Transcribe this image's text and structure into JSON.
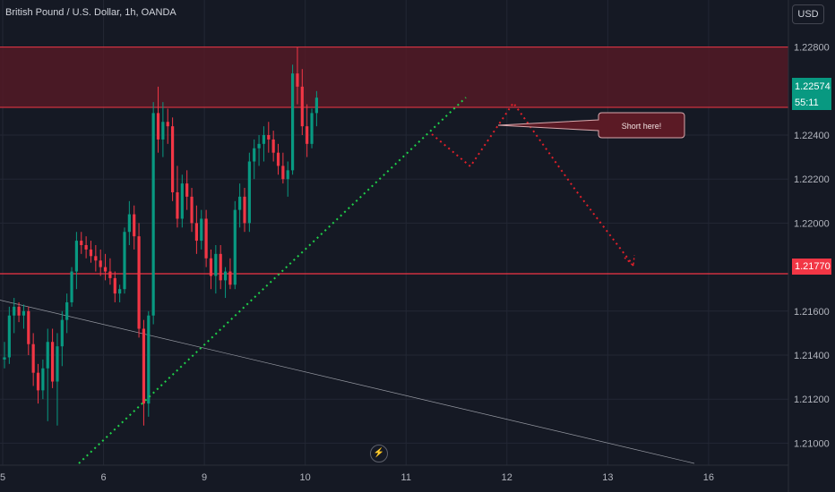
{
  "header": {
    "title": "British Pound / U.S. Dollar, 1h, OANDA",
    "currency": "USD"
  },
  "price_tags": {
    "current_price": "1.22574",
    "countdown": "55:11",
    "line_price": "1.21770"
  },
  "annotation": {
    "callout_text": "Short here!"
  },
  "colors": {
    "background": "#151924",
    "up": "#089981",
    "down": "#f23645",
    "trendline": "#1fd14a",
    "zone": "#5b1a25",
    "projection": "#e0202a"
  },
  "chart_data": {
    "type": "candlestick",
    "symbol": "GBPUSD",
    "timeframe": "1h",
    "ylim": [
      1.209,
      1.229
    ],
    "yticks": [
      1.21,
      1.212,
      1.214,
      1.216,
      1.22,
      1.222,
      1.224,
      1.228
    ],
    "ytick_labels": [
      "1.21000",
      "1.21200",
      "1.21400",
      "1.21600",
      "1.22000",
      "1.22200",
      "1.22400",
      "1.22800"
    ],
    "xticks": [
      {
        "label": "5",
        "index": 0
      },
      {
        "label": "6",
        "index": 21
      },
      {
        "label": "9",
        "index": 42
      },
      {
        "label": "10",
        "index": 63
      },
      {
        "label": "11",
        "index": 84
      },
      {
        "label": "12",
        "index": 105
      },
      {
        "label": "13",
        "index": 126
      },
      {
        "label": "16",
        "index": 147
      }
    ],
    "candles": [
      [
        1.2138,
        1.2146,
        1.2134,
        1.2139
      ],
      [
        1.2139,
        1.2162,
        1.2136,
        1.2158
      ],
      [
        1.2158,
        1.2166,
        1.215,
        1.2162
      ],
      [
        1.2162,
        1.2164,
        1.2155,
        1.2158
      ],
      [
        1.2158,
        1.2163,
        1.2152,
        1.216
      ],
      [
        1.216,
        1.2162,
        1.214,
        1.2145
      ],
      [
        1.2145,
        1.215,
        1.2126,
        1.2132
      ],
      [
        1.2132,
        1.2136,
        1.2118,
        1.2124
      ],
      [
        1.2124,
        1.2138,
        1.212,
        1.2134
      ],
      [
        1.2134,
        1.2152,
        1.211,
        1.2146
      ],
      [
        1.2146,
        1.2152,
        1.2125,
        1.2128
      ],
      [
        1.2128,
        1.215,
        1.2108,
        1.2144
      ],
      [
        1.2144,
        1.216,
        1.2135,
        1.2156
      ],
      [
        1.2156,
        1.2168,
        1.215,
        1.2164
      ],
      [
        1.2164,
        1.218,
        1.2162,
        1.2178
      ],
      [
        1.2178,
        1.2196,
        1.217,
        1.2192
      ],
      [
        1.2192,
        1.2196,
        1.2186,
        1.219
      ],
      [
        1.219,
        1.2194,
        1.2184,
        1.2188
      ],
      [
        1.2188,
        1.2192,
        1.2182,
        1.2185
      ],
      [
        1.2185,
        1.219,
        1.2178,
        1.2183
      ],
      [
        1.2183,
        1.2188,
        1.2176,
        1.218
      ],
      [
        1.218,
        1.2186,
        1.2174,
        1.2178
      ],
      [
        1.2178,
        1.2184,
        1.2172,
        1.2175
      ],
      [
        1.2175,
        1.2178,
        1.2164,
        1.2168
      ],
      [
        1.2168,
        1.2172,
        1.2164,
        1.217
      ],
      [
        1.217,
        1.2198,
        1.2168,
        1.2196
      ],
      [
        1.2196,
        1.221,
        1.219,
        1.2204
      ],
      [
        1.2204,
        1.2208,
        1.2188,
        1.2194
      ],
      [
        1.2194,
        1.22,
        1.2148,
        1.2152
      ],
      [
        1.2152,
        1.2156,
        1.2108,
        1.2118
      ],
      [
        1.2118,
        1.216,
        1.2112,
        1.2158
      ],
      [
        1.2158,
        1.2255,
        1.2154,
        1.225
      ],
      [
        1.225,
        1.2262,
        1.2232,
        1.2238
      ],
      [
        1.2238,
        1.2255,
        1.223,
        1.2246
      ],
      [
        1.2246,
        1.2252,
        1.2236,
        1.2244
      ],
      [
        1.2244,
        1.2248,
        1.221,
        1.2214
      ],
      [
        1.2214,
        1.2226,
        1.2198,
        1.2202
      ],
      [
        1.2202,
        1.2222,
        1.2198,
        1.2218
      ],
      [
        1.2218,
        1.2224,
        1.2206,
        1.2212
      ],
      [
        1.2212,
        1.2216,
        1.2196,
        1.22
      ],
      [
        1.22,
        1.2208,
        1.2186,
        1.2192
      ],
      [
        1.2192,
        1.2206,
        1.2188,
        1.2202
      ],
      [
        1.2202,
        1.2206,
        1.218,
        1.2184
      ],
      [
        1.2184,
        1.2188,
        1.217,
        1.2176
      ],
      [
        1.2176,
        1.219,
        1.2168,
        1.2186
      ],
      [
        1.2186,
        1.219,
        1.217,
        1.2174
      ],
      [
        1.2174,
        1.218,
        1.2166,
        1.2178
      ],
      [
        1.2178,
        1.2184,
        1.217,
        1.2172
      ],
      [
        1.2172,
        1.221,
        1.217,
        1.2206
      ],
      [
        1.2206,
        1.2218,
        1.2198,
        1.2212
      ],
      [
        1.2212,
        1.2216,
        1.2196,
        1.22
      ],
      [
        1.22,
        1.2232,
        1.2196,
        1.2228
      ],
      [
        1.2228,
        1.2238,
        1.222,
        1.2234
      ],
      [
        1.2234,
        1.224,
        1.2226,
        1.2236
      ],
      [
        1.2236,
        1.2244,
        1.2228,
        1.224
      ],
      [
        1.224,
        1.2246,
        1.2232,
        1.2238
      ],
      [
        1.2238,
        1.2242,
        1.2228,
        1.2232
      ],
      [
        1.2232,
        1.2236,
        1.2222,
        1.2226
      ],
      [
        1.2226,
        1.2232,
        1.2218,
        1.222
      ],
      [
        1.222,
        1.2228,
        1.2212,
        1.2224
      ],
      [
        1.2224,
        1.2272,
        1.2222,
        1.2268
      ],
      [
        1.2268,
        1.228,
        1.2254,
        1.2262
      ],
      [
        1.2262,
        1.227,
        1.224,
        1.2244
      ],
      [
        1.2244,
        1.2254,
        1.223,
        1.2236
      ],
      [
        1.2236,
        1.2252,
        1.2234,
        1.225
      ],
      [
        1.225,
        1.226,
        1.2244,
        1.2257
      ]
    ],
    "horizontal_lines": [
      1.2177,
      1.22526
    ],
    "resistance_zone": [
      1.22526,
      1.228
    ],
    "trendline": [
      [
        0,
        1.21
      ],
      [
        22,
        1.2252
      ]
    ],
    "projection_path": [
      [
        22,
        1.224
      ],
      [
        27,
        1.2222
      ],
      [
        31,
        1.2252
      ],
      [
        36,
        1.224
      ],
      [
        48,
        1.2177
      ]
    ],
    "annotations": [
      "Short here!"
    ]
  }
}
